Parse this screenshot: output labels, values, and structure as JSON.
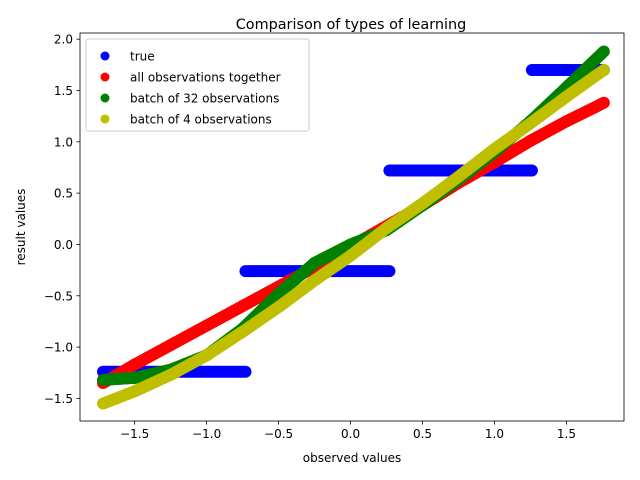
{
  "chart_data": {
    "type": "scatter",
    "title": "Comparison of types of learning",
    "xlabel": "observed values",
    "ylabel": "result values",
    "xlim": [
      -1.88,
      1.9
    ],
    "ylim": [
      -1.72,
      2.06
    ],
    "xticks": [
      -1.5,
      -1.0,
      -0.5,
      0.0,
      0.5,
      1.0,
      1.5
    ],
    "xtick_labels": [
      "−1.5",
      "−1.0",
      "−0.5",
      "0.0",
      "0.5",
      "1.0",
      "1.5"
    ],
    "yticks": [
      -1.5,
      -1.0,
      -0.5,
      0.0,
      0.5,
      1.0,
      1.5,
      2.0
    ],
    "ytick_labels": [
      "−1.5",
      "−1.0",
      "−0.5",
      "0.0",
      "0.5",
      "1.0",
      "1.5",
      "2.0"
    ],
    "grid": false,
    "legend_position": "upper-left",
    "series": [
      {
        "name": "true",
        "color": "#0000ff",
        "points": [
          [
            -1.72,
            -1.24
          ],
          [
            -0.73,
            -1.24
          ],
          [
            -0.73,
            -0.26
          ],
          [
            0.27,
            -0.26
          ],
          [
            0.27,
            0.72
          ],
          [
            1.26,
            0.72
          ],
          [
            1.26,
            1.7
          ],
          [
            1.76,
            1.7
          ]
        ]
      },
      {
        "name": "all observations together",
        "color": "#ff0000",
        "points": [
          [
            -1.72,
            -1.35
          ],
          [
            -1.5,
            -1.17
          ],
          [
            -1.25,
            -0.98
          ],
          [
            -1.0,
            -0.79
          ],
          [
            -0.75,
            -0.6
          ],
          [
            -0.5,
            -0.41
          ],
          [
            -0.25,
            -0.22
          ],
          [
            0.0,
            -0.02
          ],
          [
            0.25,
            0.18
          ],
          [
            0.5,
            0.38
          ],
          [
            0.75,
            0.6
          ],
          [
            1.0,
            0.8
          ],
          [
            1.25,
            1.01
          ],
          [
            1.5,
            1.2
          ],
          [
            1.76,
            1.38
          ]
        ]
      },
      {
        "name": "batch of 32 observations",
        "color": "#008000",
        "points": [
          [
            -1.72,
            -1.32
          ],
          [
            -1.5,
            -1.3
          ],
          [
            -1.25,
            -1.22
          ],
          [
            -1.0,
            -1.08
          ],
          [
            -0.75,
            -0.82
          ],
          [
            -0.5,
            -0.48
          ],
          [
            -0.25,
            -0.18
          ],
          [
            0.0,
            0.0
          ],
          [
            0.25,
            0.14
          ],
          [
            0.5,
            0.38
          ],
          [
            0.75,
            0.63
          ],
          [
            1.0,
            0.9
          ],
          [
            1.25,
            1.2
          ],
          [
            1.5,
            1.53
          ],
          [
            1.76,
            1.88
          ]
        ]
      },
      {
        "name": "batch of 4 observations",
        "color": "#bfbf00",
        "points": [
          [
            -1.72,
            -1.55
          ],
          [
            -1.5,
            -1.43
          ],
          [
            -1.25,
            -1.27
          ],
          [
            -1.0,
            -1.08
          ],
          [
            -0.75,
            -0.85
          ],
          [
            -0.5,
            -0.61
          ],
          [
            -0.25,
            -0.35
          ],
          [
            0.0,
            -0.11
          ],
          [
            0.25,
            0.16
          ],
          [
            0.5,
            0.4
          ],
          [
            0.75,
            0.66
          ],
          [
            1.0,
            0.93
          ],
          [
            1.25,
            1.18
          ],
          [
            1.5,
            1.44
          ],
          [
            1.76,
            1.7
          ]
        ]
      }
    ]
  }
}
